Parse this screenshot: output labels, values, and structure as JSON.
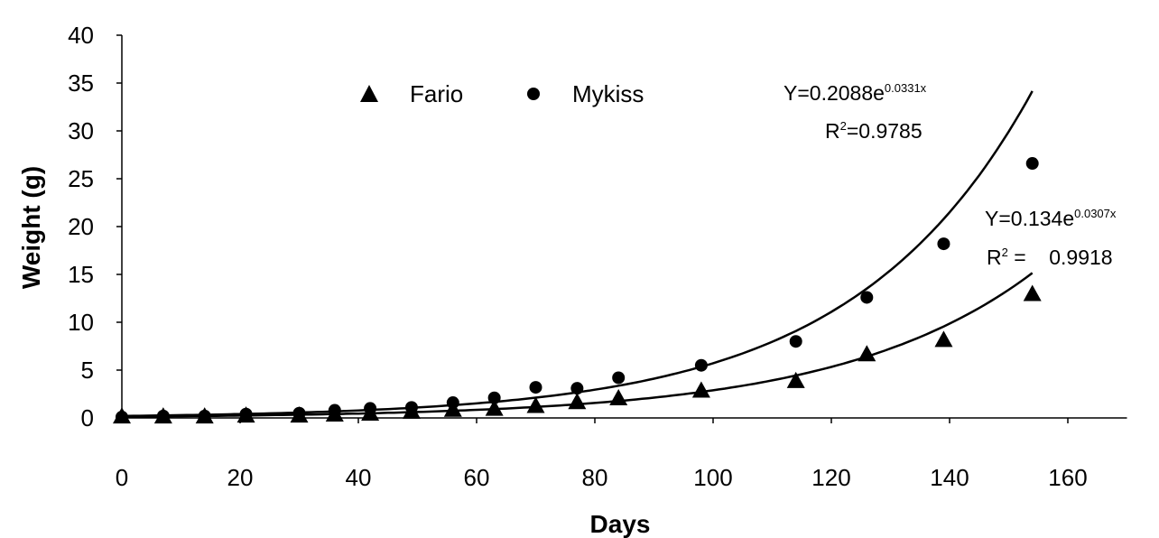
{
  "chart_data": {
    "type": "scatter",
    "xlabel": "Days",
    "ylabel": "Weight (g)",
    "xlim": [
      0,
      170
    ],
    "ylim": [
      0,
      40
    ],
    "x_ticks": [
      0,
      20,
      40,
      60,
      80,
      100,
      120,
      140,
      160
    ],
    "y_ticks": [
      0,
      5,
      10,
      15,
      20,
      25,
      30,
      35,
      40
    ],
    "grid": false,
    "legend": "top-center",
    "series": [
      {
        "name": "Fario",
        "marker": "triangle",
        "color": "#000000",
        "points": [
          [
            0,
            0.1
          ],
          [
            7,
            0.1
          ],
          [
            14,
            0.1
          ],
          [
            21,
            0.2
          ],
          [
            30,
            0.2
          ],
          [
            36,
            0.3
          ],
          [
            42,
            0.4
          ],
          [
            49,
            0.6
          ],
          [
            56,
            0.8
          ],
          [
            63,
            0.9
          ],
          [
            70,
            1.2
          ],
          [
            77,
            1.6
          ],
          [
            84,
            2.0
          ],
          [
            98,
            2.8
          ],
          [
            114,
            3.8
          ],
          [
            126,
            6.6
          ],
          [
            139,
            8.1
          ],
          [
            154,
            12.9
          ]
        ],
        "trendline": {
          "type": "exponential",
          "a": 0.134,
          "b": 0.0307,
          "equation": "Y=0.134e",
          "exponent": "0.0307x",
          "r2_label": "R",
          "r2_sup": "2",
          "r2_value": " =    0.9918"
        }
      },
      {
        "name": "Mykiss",
        "marker": "circle",
        "color": "#000000",
        "points": [
          [
            0,
            0.1
          ],
          [
            7,
            0.2
          ],
          [
            14,
            0.2
          ],
          [
            21,
            0.4
          ],
          [
            30,
            0.5
          ],
          [
            36,
            0.8
          ],
          [
            42,
            1.0
          ],
          [
            49,
            1.1
          ],
          [
            56,
            1.6
          ],
          [
            63,
            2.1
          ],
          [
            70,
            3.2
          ],
          [
            77,
            3.1
          ],
          [
            84,
            4.2
          ],
          [
            98,
            5.5
          ],
          [
            114,
            8.0
          ],
          [
            126,
            12.6
          ],
          [
            139,
            18.2
          ],
          [
            154,
            26.6
          ]
        ],
        "trendline": {
          "type": "exponential",
          "a": 0.2088,
          "b": 0.0331,
          "equation": "Y=0.2088e",
          "exponent": "0.0331x",
          "r2_label": "R",
          "r2_sup": "2",
          "r2_value": "=0.9785"
        }
      }
    ]
  }
}
